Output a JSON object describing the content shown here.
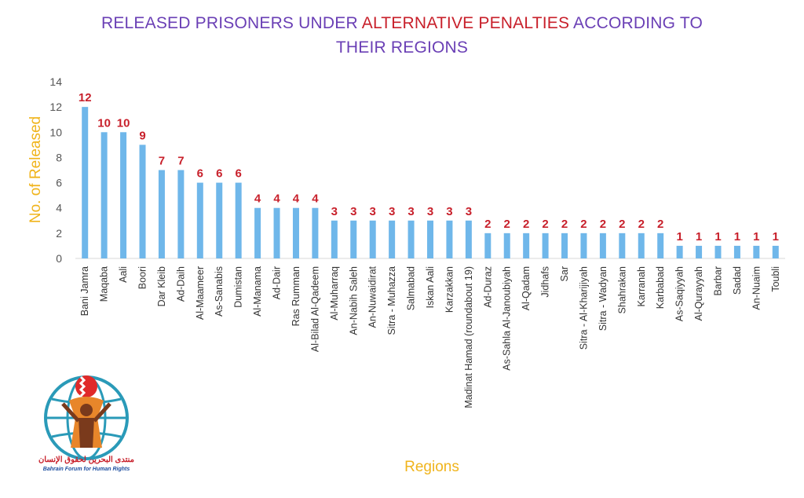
{
  "title": {
    "part1": "RELEASED PRISONERS UNDER ",
    "highlight": "ALTERNATIVE PENALTIES",
    "part2": " ACCORDING TO",
    "line2": "THEIR REGIONS"
  },
  "logo": {
    "arabic": "منتدى البحرين لحقوق الإنسان",
    "english": "Bahrain Forum for Human Rights"
  },
  "colors": {
    "bar": "#6fb7ea",
    "data_label": "#c8202b",
    "title": "#6a3fb5",
    "title_highlight": "#c8202b",
    "axis_title": "#f0b41c"
  },
  "chart_data": {
    "type": "bar",
    "title": "RELEASED PRISONERS UNDER ALTERNATIVE PENALTIES ACCORDING TO THEIR REGIONS",
    "xlabel": "Regions",
    "ylabel": "No. of Released",
    "ylim": [
      0,
      14
    ],
    "yticks": [
      0,
      2,
      4,
      6,
      8,
      10,
      12,
      14
    ],
    "grid": false,
    "categories": [
      "Bani Jamra",
      "Maqaba",
      "Aali",
      "Boori",
      "Dar Kleib",
      "Ad-Daih",
      "Al-Maameer",
      "As-Sanabis",
      "Dumistan",
      "Al-Manama",
      "Ad-Dair",
      "Ras Rumman",
      "Al-Bilad Al-Qadeem",
      "Al-Muharraq",
      "An-Nabih Saleh",
      "An-Nuwaidirat",
      "Sitra - Muhazza",
      "Salmabad",
      "Iskan Aali",
      "Karzakkan",
      "Madinat Hamad (roundabout 19)",
      "Ad-Duraz",
      "As-Sahla Al-Janoubiyah",
      "Al-Qadam",
      "Jidhafs",
      "Sar",
      "Sitra - Al-Kharijiyah",
      "Sitra - Wadyan",
      "Shahrakan",
      "Karranah",
      "Karbabad",
      "As-Saqiyyah",
      "Al-Qurayyah",
      "Barbar",
      "Sadad",
      "An-Nuaim",
      "Toubli"
    ],
    "values": [
      12,
      10,
      10,
      9,
      7,
      7,
      6,
      6,
      6,
      4,
      4,
      4,
      4,
      3,
      3,
      3,
      3,
      3,
      3,
      3,
      3,
      2,
      2,
      2,
      2,
      2,
      2,
      2,
      2,
      2,
      2,
      1,
      1,
      1,
      1,
      1,
      1
    ]
  }
}
